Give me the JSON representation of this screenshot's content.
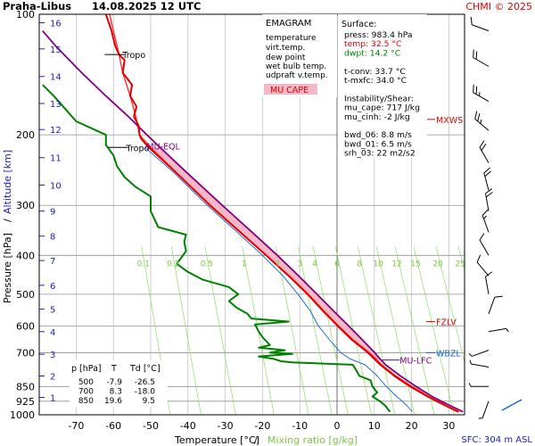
{
  "header": {
    "station": "Praha-Libus",
    "datetime": "14.08.2025 12 UTC",
    "copyright": "CHMI © 2025"
  },
  "colors": {
    "temperature": "#e00000",
    "virt_temp": "#ff3030",
    "dew_point": "#008000",
    "wet_bulb": "#1060d0",
    "updraft_virt": "#800080",
    "cape_fill": "#f4b8c8",
    "mixing_ratio": "#8ee060",
    "isotherm": "#b0b0b0",
    "isobar": "#909090",
    "altitude_label": "#2020c0",
    "frame": "#000000"
  },
  "legend": {
    "title": "EMAGRAM",
    "items": [
      {
        "label": "temperature",
        "color": "#e00000"
      },
      {
        "label": "virt.temp.",
        "color": "#ff3030"
      },
      {
        "label": "dew point",
        "color": "#008000"
      },
      {
        "label": "wet bulb temp.",
        "color": "#1060d0"
      },
      {
        "label": "udpraft v.temp.",
        "color": "#800080"
      }
    ],
    "cape_badge": "MU CAPE"
  },
  "surface_box": {
    "title": "Surface:",
    "lines": [
      {
        "text": "press: 983.4 hPa",
        "color": "#000000"
      },
      {
        "text": "temp: 32.5 °C",
        "color": "#e00000"
      },
      {
        "text": "dwpt: 14.2 °C",
        "color": "#008000"
      },
      {
        "text": "",
        "color": "#000000"
      },
      {
        "text": "t-conv: 33.7 °C",
        "color": "#000000"
      },
      {
        "text": "t-mxfc: 34.0 °C",
        "color": "#000000"
      },
      {
        "text": "",
        "color": "#000000"
      },
      {
        "text": "Instability/Shear:",
        "color": "#000000"
      },
      {
        "text": "mu_cape: 717 J/kg",
        "color": "#000000"
      },
      {
        "text": "mu_cinh: -2 J/kg",
        "color": "#000000"
      },
      {
        "text": "",
        "color": "#000000"
      },
      {
        "text": "bwd_06: 8.8 m/s",
        "color": "#000000"
      },
      {
        "text": "bwd_01: 6.5 m/s",
        "color": "#000000"
      },
      {
        "text": "srh_03: 22 m2/s2",
        "color": "#000000"
      }
    ]
  },
  "level_table": {
    "headers": [
      "p [hPa]",
      "T",
      "Td [°C]"
    ],
    "rows": [
      [
        "500",
        "-7.9",
        "-26.5"
      ],
      [
        "700",
        "8.3",
        "-18.0"
      ],
      [
        "850",
        "19.6",
        "9.5"
      ]
    ]
  },
  "footer": {
    "sfc": "SFC: 304 m ASL"
  },
  "chart_data": {
    "type": "line",
    "title": "Praha-Libus 14.08.2025 12 UTC",
    "xlabel": "Temperature [°C]",
    "xlabel_extra": "Mixing ratio [g/kg]",
    "ylabel": "Pressure [hPa]",
    "ylabel_extra": "Altitude [km]",
    "xlim": [
      -80,
      35
    ],
    "ylim": [
      1000,
      100
    ],
    "y_scale": "log",
    "x_ticks": [
      -70,
      -60,
      -50,
      -40,
      -30,
      -20,
      -10,
      0,
      10,
      20,
      30
    ],
    "pressure_ticks": [
      100,
      200,
      300,
      400,
      500,
      600,
      700,
      850,
      925,
      1000
    ],
    "altitude_ticks": [
      {
        "km": "1",
        "p": 905
      },
      {
        "km": "2",
        "p": 800
      },
      {
        "km": "3",
        "p": 706
      },
      {
        "km": "4",
        "p": 620
      },
      {
        "km": "5",
        "p": 545
      },
      {
        "km": "6",
        "p": 475
      },
      {
        "km": "7",
        "p": 412
      },
      {
        "km": "8",
        "p": 358
      },
      {
        "km": "9",
        "p": 310
      },
      {
        "km": "10",
        "p": 267
      },
      {
        "km": "11",
        "p": 228
      },
      {
        "km": "12",
        "p": 194
      },
      {
        "km": "13",
        "p": 167
      },
      {
        "km": "14",
        "p": 143
      },
      {
        "km": "15",
        "p": 122
      },
      {
        "km": "16",
        "p": 105
      }
    ],
    "mixing_ratio_labels": [
      "0.1",
      "0.2",
      "0.5",
      "1",
      "2",
      "3",
      "4",
      "6",
      "8",
      "10",
      "12",
      "15",
      "20",
      "25"
    ],
    "mixing_ratio_label_x": [
      -51,
      -43,
      -34,
      -24,
      -15,
      -9,
      -5,
      1,
      7,
      12,
      17,
      22,
      28,
      34
    ],
    "series": [
      {
        "key": "virt_temp",
        "values": [
          [
            983,
            32.8
          ],
          [
            950,
            29.5
          ],
          [
            925,
            27.1
          ],
          [
            900,
            24.6
          ],
          [
            850,
            20.2
          ],
          [
            800,
            15.8
          ],
          [
            750,
            12.0
          ],
          [
            700,
            8.7
          ],
          [
            650,
            4.3
          ],
          [
            600,
            0.4
          ],
          [
            550,
            -3.6
          ],
          [
            500,
            -7.7
          ],
          [
            450,
            -12.8
          ],
          [
            400,
            -18.9
          ],
          [
            350,
            -25.9
          ],
          [
            300,
            -34.0
          ],
          [
            250,
            -42.8
          ],
          [
            215,
            -50.0
          ],
          [
            200,
            -53.0
          ],
          [
            180,
            -54.0
          ],
          [
            160,
            -55.5
          ],
          [
            140,
            -57.5
          ],
          [
            126,
            -58.5
          ],
          [
            120,
            -59.0
          ],
          [
            110,
            -60.0
          ],
          [
            100,
            -61.0
          ]
        ]
      },
      {
        "key": "temperature",
        "values": [
          [
            983,
            32.5
          ],
          [
            950,
            29.2
          ],
          [
            925,
            26.8
          ],
          [
            900,
            24.3
          ],
          [
            850,
            19.6
          ],
          [
            800,
            15.4
          ],
          [
            750,
            11.6
          ],
          [
            700,
            8.3
          ],
          [
            650,
            4.0
          ],
          [
            600,
            0.2
          ],
          [
            550,
            -3.8
          ],
          [
            500,
            -7.9
          ],
          [
            450,
            -13.0
          ],
          [
            400,
            -19.0
          ],
          [
            350,
            -26.0
          ],
          [
            300,
            -34.1
          ],
          [
            250,
            -42.9
          ],
          [
            215,
            -50.5
          ],
          [
            205,
            -52.5
          ],
          [
            200,
            -53.0
          ],
          [
            190,
            -53.2
          ],
          [
            180,
            -54.5
          ],
          [
            170,
            -53.8
          ],
          [
            160,
            -55.5
          ],
          [
            150,
            -55.0
          ],
          [
            140,
            -57.5
          ],
          [
            130,
            -57.0
          ],
          [
            126,
            -58.5
          ],
          [
            120,
            -59.5
          ],
          [
            110,
            -60.5
          ],
          [
            100,
            -62.0
          ]
        ]
      },
      {
        "key": "dew_point",
        "values": [
          [
            983,
            14.2
          ],
          [
            950,
            13.0
          ],
          [
            925,
            11.5
          ],
          [
            900,
            9.5
          ],
          [
            880,
            10.8
          ],
          [
            850,
            9.5
          ],
          [
            820,
            9.0
          ],
          [
            800,
            6.0
          ],
          [
            770,
            5.0
          ],
          [
            750,
            4.2
          ],
          [
            740,
            -12.0
          ],
          [
            735,
            -15.0
          ],
          [
            725,
            -17.0
          ],
          [
            715,
            -21.0
          ],
          [
            705,
            -12.0
          ],
          [
            700,
            -18.0
          ],
          [
            690,
            -14.0
          ],
          [
            680,
            -21.0
          ],
          [
            670,
            -18.0
          ],
          [
            640,
            -20.0
          ],
          [
            620,
            -21.0
          ],
          [
            595,
            -22.0
          ],
          [
            585,
            -13.0
          ],
          [
            575,
            -23.0
          ],
          [
            560,
            -24.0
          ],
          [
            540,
            -27.0
          ],
          [
            520,
            -29.0
          ],
          [
            500,
            -26.5
          ],
          [
            480,
            -29.0
          ],
          [
            460,
            -36.0
          ],
          [
            440,
            -40.0
          ],
          [
            420,
            -43.0
          ],
          [
            390,
            -40.5
          ],
          [
            370,
            -41.0
          ],
          [
            355,
            -40.5
          ],
          [
            340,
            -48.0
          ],
          [
            310,
            -50.0
          ],
          [
            285,
            -50.0
          ],
          [
            270,
            -54.0
          ],
          [
            255,
            -57.0
          ],
          [
            240,
            -59.0
          ],
          [
            225,
            -60.0
          ],
          [
            212,
            -62.0
          ],
          [
            200,
            -62.0
          ],
          [
            185,
            -70.0
          ],
          [
            172,
            -73.0
          ],
          [
            160,
            -76.0
          ],
          [
            150,
            -79.0
          ]
        ]
      },
      {
        "key": "wet_bulb",
        "values": [
          [
            983,
            20.2
          ],
          [
            950,
            18.8
          ],
          [
            925,
            17.5
          ],
          [
            900,
            16.0
          ],
          [
            850,
            13.2
          ],
          [
            800,
            10.8
          ],
          [
            750,
            7.5
          ],
          [
            725,
            3.5
          ],
          [
            700,
            1.0
          ],
          [
            650,
            -2.0
          ],
          [
            600,
            -5.0
          ],
          [
            550,
            -7.2
          ],
          [
            500,
            -10.5
          ],
          [
            450,
            -14.5
          ],
          [
            400,
            -20.0
          ],
          [
            350,
            -26.8
          ],
          [
            300,
            -34.8
          ],
          [
            250,
            -43.5
          ],
          [
            215,
            -51.5
          ]
        ]
      },
      {
        "key": "updraft_virt",
        "values": [
          [
            983,
            33.8
          ],
          [
            950,
            30.5
          ],
          [
            925,
            28.0
          ],
          [
            900,
            25.5
          ],
          [
            850,
            21.2
          ],
          [
            800,
            17.0
          ],
          [
            750,
            13.0
          ],
          [
            730,
            11.8
          ],
          [
            700,
            10.1
          ],
          [
            650,
            6.8
          ],
          [
            600,
            3.1
          ],
          [
            550,
            -1.0
          ],
          [
            500,
            -5.4
          ],
          [
            450,
            -10.3
          ],
          [
            400,
            -16.0
          ],
          [
            350,
            -22.8
          ],
          [
            300,
            -30.8
          ],
          [
            250,
            -40.0
          ],
          [
            215,
            -47.5
          ],
          [
            200,
            -51.0
          ],
          [
            180,
            -56.0
          ],
          [
            160,
            -62.0
          ],
          [
            140,
            -68.5
          ],
          [
            120,
            -75.5
          ],
          [
            110,
            -79.0
          ]
        ]
      }
    ],
    "annotations": [
      {
        "label": "Tropo",
        "p": 215,
        "x": -58,
        "color": "#000000"
      },
      {
        "label": "Tropo",
        "p": 126,
        "x": -59,
        "color": "#000000"
      },
      {
        "label": "MU-EQL",
        "p": 215,
        "x": -53,
        "color": "#800080"
      },
      {
        "label": "MU-LFC",
        "p": 730,
        "x": 12.5,
        "color": "#800080"
      },
      {
        "label": "MXWS",
        "p": 183,
        "x": 35,
        "color": "#e00000"
      },
      {
        "label": "FZLV",
        "p": 585,
        "x": 35,
        "color": "#e00000"
      },
      {
        "label": "WBZL",
        "p": 700,
        "x": 35,
        "color": "#1060d0"
      }
    ],
    "wind_barbs": [
      {
        "p": 110,
        "dir": 290,
        "spd": 10
      },
      {
        "p": 135,
        "dir": 300,
        "spd": 20
      },
      {
        "p": 165,
        "dir": 300,
        "spd": 25
      },
      {
        "p": 195,
        "dir": 310,
        "spd": 25
      },
      {
        "p": 235,
        "dir": 330,
        "spd": 20
      },
      {
        "p": 275,
        "dir": 345,
        "spd": 20
      },
      {
        "p": 310,
        "dir": 350,
        "spd": 20
      },
      {
        "p": 350,
        "dir": 340,
        "spd": 15
      },
      {
        "p": 400,
        "dir": 330,
        "spd": 10
      },
      {
        "p": 450,
        "dir": 320,
        "spd": 10
      },
      {
        "p": 500,
        "dir": 350,
        "spd": 10
      },
      {
        "p": 560,
        "dir": 20,
        "spd": 10
      },
      {
        "p": 620,
        "dir": 80,
        "spd": 5
      },
      {
        "p": 690,
        "dir": 250,
        "spd": 5
      },
      {
        "p": 760,
        "dir": 280,
        "spd": 5
      },
      {
        "p": 850,
        "dir": 270,
        "spd": 5
      },
      {
        "p": 925,
        "dir": 200,
        "spd": 5
      }
    ]
  }
}
